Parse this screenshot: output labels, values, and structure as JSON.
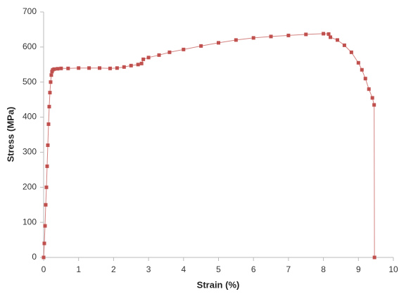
{
  "chart_data": {
    "type": "scatter-line",
    "x_label": "Strain (%)",
    "y_label": "Stress (MPa)",
    "xlim": [
      0,
      10
    ],
    "ylim": [
      0,
      700
    ],
    "xticks": [
      0,
      1,
      2,
      3,
      4,
      5,
      6,
      7,
      8,
      9,
      10
    ],
    "yticks": [
      0,
      100,
      200,
      300,
      400,
      500,
      600,
      700
    ],
    "grid": false,
    "series": [
      {
        "color": "#c0504d",
        "x": [
          0,
          0.02,
          0.04,
          0.06,
          0.08,
          0.1,
          0.12,
          0.14,
          0.16,
          0.18,
          0.2,
          0.22,
          0.24,
          0.26,
          0.3,
          0.4,
          0.5,
          0.7,
          1.0,
          1.3,
          1.6,
          1.9,
          2.1,
          2.3,
          2.5,
          2.7,
          2.8,
          2.85,
          3.0,
          3.3,
          3.6,
          4.0,
          4.5,
          5.0,
          5.5,
          6.0,
          6.5,
          7.0,
          7.5,
          8.0,
          8.15,
          8.2,
          8.4,
          8.6,
          8.8,
          9.0,
          9.1,
          9.2,
          9.3,
          9.4,
          9.45,
          9.46
        ],
        "values": [
          0,
          40,
          90,
          150,
          200,
          260,
          320,
          380,
          430,
          470,
          500,
          520,
          530,
          535,
          537,
          538,
          539,
          539,
          540,
          540,
          540,
          539,
          540,
          543,
          547,
          550,
          553,
          565,
          570,
          577,
          585,
          593,
          603,
          612,
          620,
          626,
          630,
          633,
          636,
          638,
          637,
          628,
          620,
          605,
          585,
          555,
          535,
          510,
          480,
          455,
          435,
          0
        ]
      }
    ]
  }
}
